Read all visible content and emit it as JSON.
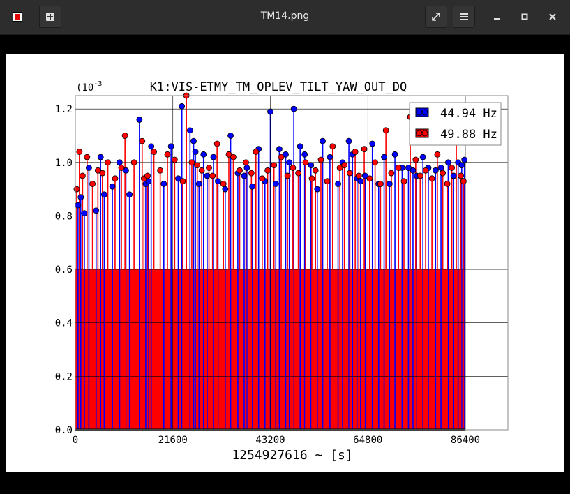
{
  "window": {
    "title": "TM14.png",
    "icons": [
      "app-icon",
      "new-tab-icon",
      "fullscreen-icon",
      "menu-icon",
      "minimize-icon",
      "maximize-icon",
      "close-icon"
    ]
  },
  "chart_data": {
    "type": "scatter",
    "title": "K1:VIS-ETMY_TM_OPLEV_TILT_YAW_OUT_DQ",
    "xlabel": "1254927616 ~ [s]",
    "ylabel": "",
    "y_exponent_label": "(10",
    "y_exponent_sup": "-3",
    "xlim": [
      0,
      86400
    ],
    "ylim": [
      0,
      1.25
    ],
    "x_ticks": [
      "0",
      "21600",
      "43200",
      "64800",
      "86400"
    ],
    "y_ticks": [
      "0.0",
      "0.2",
      "0.4",
      "0.6",
      "0.8",
      "1.0",
      "1.2"
    ],
    "x_tick_values": [
      0,
      21600,
      43200,
      64800,
      86400
    ],
    "y_tick_values": [
      0.0,
      0.2,
      0.4,
      0.6,
      0.8,
      1.0,
      1.2
    ],
    "grid": true,
    "legend_position": "top-right",
    "series": [
      {
        "name": "44.94 Hz",
        "color": "#0000ff",
        "style": "stem-circles",
        "x": [
          600,
          1200,
          2000,
          3000,
          4600,
          5600,
          6400,
          8200,
          9800,
          11200,
          12000,
          14200,
          15600,
          16200,
          16800,
          19600,
          21200,
          22800,
          23600,
          25400,
          26200,
          26600,
          27400,
          28400,
          29200,
          30600,
          31600,
          33200,
          34400,
          36000,
          37400,
          38000,
          39200,
          40600,
          42000,
          43200,
          44400,
          45200,
          46600,
          47400,
          48400,
          49800,
          50800,
          52200,
          53600,
          54800,
          56400,
          58200,
          59200,
          60600,
          61400,
          62400,
          63200,
          64200,
          65800,
          67200,
          68400,
          69600,
          70800,
          72400,
          73800,
          74800,
          75600,
          77000,
          78200,
          79800,
          81000,
          82600,
          83800,
          84800,
          85600,
          86200
        ],
        "y": [
          0.84,
          0.87,
          0.81,
          0.98,
          0.82,
          1.02,
          0.88,
          0.91,
          1.0,
          0.97,
          0.88,
          1.16,
          0.92,
          0.93,
          1.06,
          0.92,
          1.06,
          0.94,
          1.21,
          1.12,
          1.08,
          1.04,
          0.92,
          1.03,
          0.95,
          1.02,
          0.93,
          0.9,
          1.1,
          0.96,
          0.95,
          0.98,
          0.91,
          1.05,
          0.93,
          1.19,
          0.92,
          1.05,
          1.03,
          1.0,
          1.2,
          1.06,
          1.03,
          0.99,
          0.9,
          1.08,
          1.02,
          0.92,
          1.0,
          1.08,
          1.03,
          0.94,
          0.93,
          0.95,
          1.07,
          0.92,
          1.02,
          0.92,
          1.03,
          0.98,
          0.98,
          0.97,
          0.95,
          1.02,
          0.98,
          0.97,
          0.98,
          1.0,
          0.95,
          1.0,
          0.99,
          1.01
        ]
      },
      {
        "name": "49.88 Hz",
        "color": "#ff0000",
        "style": "stem-circles",
        "x": [
          300,
          900,
          1600,
          2600,
          3800,
          5000,
          6000,
          7200,
          8800,
          10200,
          11000,
          13000,
          14800,
          15200,
          16000,
          17400,
          18800,
          20400,
          22000,
          23800,
          24600,
          25800,
          27000,
          28000,
          29600,
          30400,
          31400,
          32800,
          34000,
          35000,
          36400,
          37800,
          39000,
          40000,
          41400,
          42600,
          44000,
          45600,
          47000,
          48200,
          49400,
          51000,
          52400,
          53200,
          54400,
          55800,
          57000,
          58600,
          59600,
          60800,
          62000,
          62800,
          64000,
          65200,
          66400,
          67600,
          68800,
          70000,
          71600,
          72800,
          74200,
          75400,
          76400,
          77600,
          79000,
          80200,
          81400,
          82400,
          83400,
          84400,
          85400,
          86000
        ],
        "y": [
          0.9,
          1.04,
          0.95,
          1.02,
          0.92,
          0.97,
          0.96,
          1.0,
          0.94,
          0.98,
          1.1,
          1.0,
          1.08,
          0.94,
          0.95,
          1.04,
          0.97,
          1.03,
          1.01,
          0.93,
          1.25,
          1.0,
          0.99,
          0.97,
          0.98,
          0.95,
          1.07,
          0.92,
          1.03,
          1.02,
          0.97,
          1.0,
          0.96,
          1.04,
          0.94,
          0.97,
          0.99,
          1.02,
          0.95,
          0.98,
          0.96,
          1.0,
          0.94,
          0.97,
          1.01,
          0.93,
          1.06,
          0.98,
          0.99,
          0.96,
          1.04,
          0.95,
          1.05,
          0.94,
          1.0,
          0.92,
          1.12,
          0.96,
          0.98,
          0.93,
          1.17,
          1.01,
          0.95,
          0.97,
          0.94,
          1.03,
          0.96,
          0.92,
          0.98,
          1.09,
          0.95,
          0.93
        ]
      }
    ]
  }
}
